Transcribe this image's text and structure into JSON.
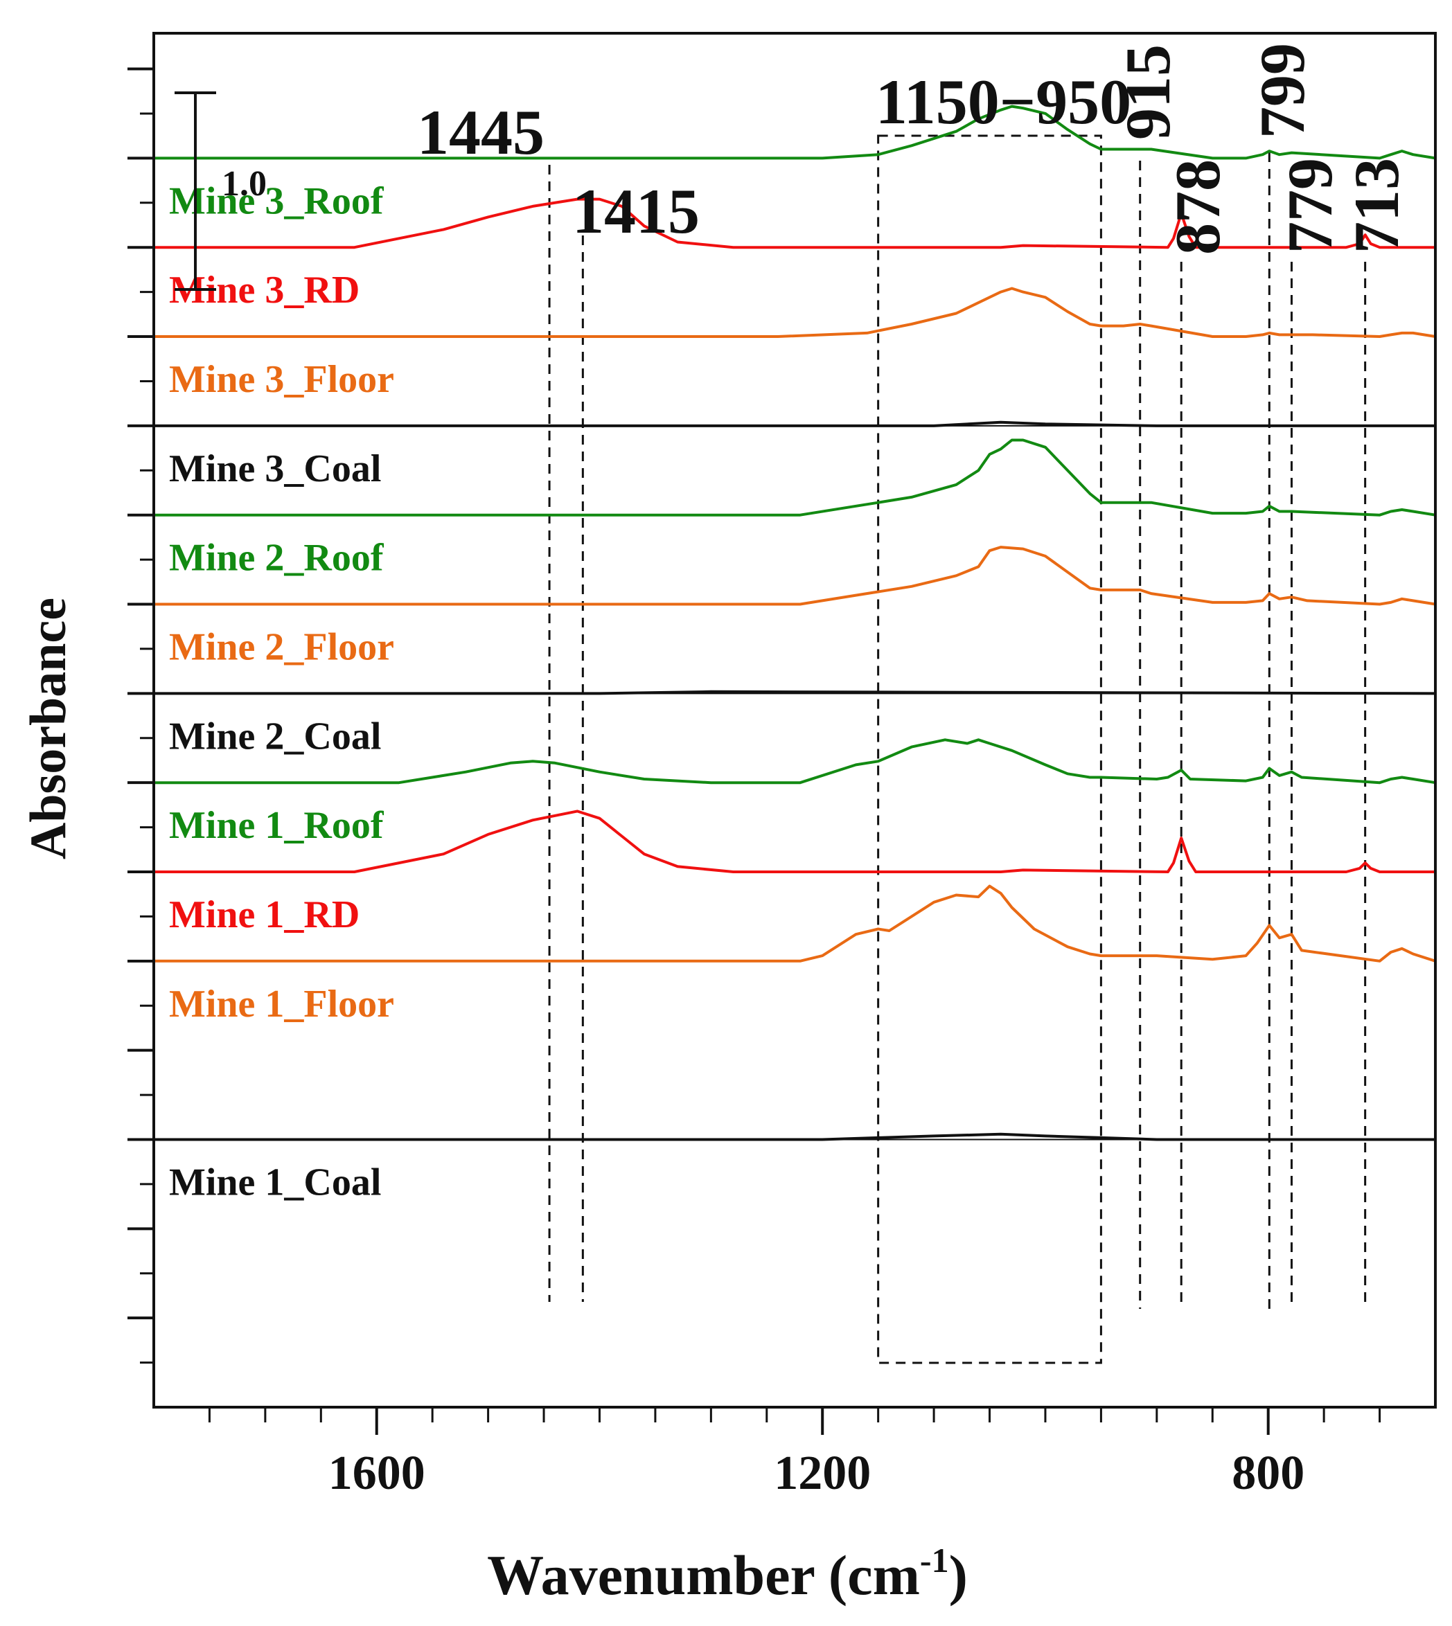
{
  "chart_data": {
    "type": "line",
    "title": "",
    "xlabel": "Wavenumber (cm",
    "xlabel_sup": "-1",
    "xlabel_suffix": ")",
    "ylabel": "Absorbance",
    "x_direction": "reversed",
    "xlim": [
      1800,
      650
    ],
    "xticks": [
      1600,
      1200,
      800
    ],
    "xtick_labels": [
      "1600",
      "1200",
      "800"
    ],
    "x_minor_step": 50,
    "ylim": [
      0,
      7.7
    ],
    "y_minor_step": 0.25,
    "scale_bar": {
      "label": "1.0",
      "value": 1.0
    },
    "grid": false,
    "series_labels": [
      {
        "name": "Mine 3_Roof",
        "color": "#128a12"
      },
      {
        "name": "Mine 3_RD",
        "color": "#f01010"
      },
      {
        "name": "Mine 3_Floor",
        "color": "#e96a14"
      },
      {
        "name": "Mine 3_Coal",
        "color": "#111111"
      },
      {
        "name": "Mine 2_Roof",
        "color": "#128a12"
      },
      {
        "name": "Mine 2_Floor",
        "color": "#e96a14"
      },
      {
        "name": "Mine 2_Coal",
        "color": "#111111"
      },
      {
        "name": "Mine 1_Roof",
        "color": "#128a12"
      },
      {
        "name": "Mine 1_RD",
        "color": "#f01010"
      },
      {
        "name": "Mine 1_Floor",
        "color": "#e96a14"
      },
      {
        "name": "Mine 1_Coal",
        "color": "#111111"
      }
    ],
    "series": [
      {
        "name": "Mine 3_Roof",
        "color": "#128a12",
        "baseline": 7.0,
        "x": [
          1800,
          1200,
          1150,
          1120,
          1080,
          1060,
          1040,
          1030,
          1020,
          1000,
          980,
          960,
          950,
          930,
          915,
          905,
          850,
          820,
          805,
          799,
          790,
          779,
          700,
          690,
          680,
          670,
          650
        ],
        "y": [
          0,
          0,
          0.02,
          0.07,
          0.15,
          0.22,
          0.27,
          0.29,
          0.28,
          0.25,
          0.16,
          0.08,
          0.05,
          0.05,
          0.05,
          0.05,
          0.0,
          0.0,
          0.02,
          0.04,
          0.02,
          0.03,
          0.0,
          0.02,
          0.04,
          0.02,
          0
        ]
      },
      {
        "name": "Mine 3_RD",
        "color": "#f01010",
        "baseline": 6.5,
        "x": [
          1800,
          1620,
          1540,
          1500,
          1460,
          1420,
          1400,
          1380,
          1360,
          1330,
          1280,
          1040,
          1020,
          890,
          885,
          878,
          871,
          865,
          730,
          718,
          713,
          708,
          700,
          650
        ],
        "y": [
          0,
          0,
          0.1,
          0.17,
          0.23,
          0.27,
          0.27,
          0.23,
          0.12,
          0.03,
          0,
          0,
          0.01,
          0,
          0.05,
          0.19,
          0.06,
          0,
          0,
          0.02,
          0.07,
          0.02,
          0,
          0
        ]
      },
      {
        "name": "Mine 3_Floor",
        "color": "#e96a14",
        "baseline": 6.0,
        "x": [
          1800,
          1240,
          1160,
          1120,
          1080,
          1060,
          1040,
          1030,
          1020,
          1000,
          980,
          960,
          950,
          930,
          915,
          905,
          850,
          820,
          805,
          799,
          790,
          779,
          760,
          700,
          690,
          680,
          670,
          650
        ],
        "y": [
          0,
          0,
          0.02,
          0.07,
          0.13,
          0.19,
          0.25,
          0.27,
          0.25,
          0.22,
          0.14,
          0.07,
          0.06,
          0.06,
          0.07,
          0.06,
          0,
          0,
          0.01,
          0.02,
          0.01,
          0.01,
          0.01,
          0,
          0.01,
          0.02,
          0.02,
          0
        ]
      },
      {
        "name": "Mine 3_Coal",
        "color": "#111111",
        "baseline": 5.5,
        "x": [
          1800,
          1100,
          1040,
          1000,
          900,
          650
        ],
        "y": [
          0,
          0,
          0.02,
          0.01,
          0,
          0
        ]
      },
      {
        "name": "Mine 2_Roof",
        "color": "#128a12",
        "baseline": 5.0,
        "x": [
          1800,
          1220,
          1170,
          1150,
          1120,
          1080,
          1060,
          1050,
          1040,
          1030,
          1020,
          1000,
          980,
          960,
          950,
          930,
          915,
          905,
          850,
          820,
          805,
          799,
          790,
          779,
          700,
          690,
          680,
          670,
          650
        ],
        "y": [
          0,
          0,
          0.05,
          0.07,
          0.1,
          0.17,
          0.25,
          0.34,
          0.37,
          0.42,
          0.42,
          0.38,
          0.25,
          0.12,
          0.07,
          0.07,
          0.07,
          0.07,
          0.01,
          0.01,
          0.02,
          0.05,
          0.02,
          0.02,
          0.0,
          0.02,
          0.03,
          0.02,
          0
        ]
      },
      {
        "name": "Mine 2_Floor",
        "color": "#e96a14",
        "baseline": 4.5,
        "x": [
          1800,
          1220,
          1170,
          1150,
          1120,
          1080,
          1060,
          1050,
          1040,
          1020,
          1000,
          980,
          960,
          950,
          930,
          915,
          905,
          850,
          820,
          805,
          799,
          790,
          779,
          765,
          700,
          690,
          680,
          670,
          650
        ],
        "y": [
          0,
          0,
          0.05,
          0.07,
          0.1,
          0.16,
          0.21,
          0.3,
          0.32,
          0.31,
          0.27,
          0.18,
          0.09,
          0.08,
          0.08,
          0.08,
          0.06,
          0.01,
          0.01,
          0.02,
          0.06,
          0.03,
          0.04,
          0.02,
          0,
          0.01,
          0.03,
          0.02,
          0
        ]
      },
      {
        "name": "Mine 2_Coal",
        "color": "#111111",
        "baseline": 4.0,
        "x": [
          1800,
          1400,
          1300,
          650
        ],
        "y": [
          0,
          0,
          0.01,
          0
        ]
      },
      {
        "name": "Mine 1_Roof",
        "color": "#128a12",
        "baseline": 3.5,
        "x": [
          1800,
          1580,
          1520,
          1480,
          1460,
          1440,
          1400,
          1360,
          1300,
          1220,
          1170,
          1150,
          1120,
          1090,
          1070,
          1060,
          1050,
          1030,
          1000,
          980,
          960,
          950,
          900,
          890,
          878,
          870,
          820,
          805,
          799,
          790,
          779,
          770,
          700,
          690,
          680,
          670,
          650
        ],
        "y": [
          0,
          0,
          0.06,
          0.11,
          0.12,
          0.11,
          0.06,
          0.02,
          0.0,
          0.0,
          0.1,
          0.12,
          0.2,
          0.24,
          0.22,
          0.24,
          0.22,
          0.18,
          0.1,
          0.05,
          0.03,
          0.03,
          0.02,
          0.03,
          0.07,
          0.02,
          0.01,
          0.03,
          0.08,
          0.04,
          0.06,
          0.03,
          0,
          0.02,
          0.03,
          0.02,
          0
        ]
      },
      {
        "name": "Mine 1_RD",
        "color": "#f01010",
        "baseline": 3.0,
        "x": [
          1800,
          1620,
          1540,
          1500,
          1460,
          1420,
          1400,
          1380,
          1360,
          1330,
          1280,
          1040,
          1020,
          890,
          885,
          878,
          871,
          865,
          730,
          718,
          713,
          708,
          700,
          650
        ],
        "y": [
          0,
          0,
          0.1,
          0.21,
          0.29,
          0.34,
          0.3,
          0.2,
          0.1,
          0.03,
          0,
          0,
          0.01,
          0,
          0.05,
          0.19,
          0.06,
          0,
          0,
          0.02,
          0.05,
          0.02,
          0,
          0
        ]
      },
      {
        "name": "Mine 1_Floor",
        "color": "#e96a14",
        "baseline": 2.5,
        "x": [
          1800,
          1220,
          1200,
          1170,
          1150,
          1140,
          1120,
          1100,
          1080,
          1060,
          1050,
          1040,
          1030,
          1010,
          980,
          960,
          950,
          900,
          850,
          820,
          810,
          799,
          790,
          779,
          770,
          700,
          690,
          680,
          670,
          650
        ],
        "y": [
          0,
          0,
          0.03,
          0.15,
          0.18,
          0.17,
          0.25,
          0.33,
          0.37,
          0.36,
          0.42,
          0.38,
          0.3,
          0.18,
          0.08,
          0.04,
          0.03,
          0.03,
          0.01,
          0.03,
          0.1,
          0.2,
          0.13,
          0.15,
          0.06,
          0.0,
          0.05,
          0.07,
          0.04,
          0
        ]
      },
      {
        "name": "Mine 1_Coal",
        "color": "#111111",
        "baseline": 1.5,
        "x": [
          1800,
          1200,
          1150,
          1100,
          1040,
          1000,
          950,
          900,
          650
        ],
        "y": [
          0,
          0,
          0.01,
          0.02,
          0.03,
          0.02,
          0.01,
          0,
          0
        ]
      }
    ],
    "annotations": [
      {
        "label": "1445",
        "x": 1445,
        "vertical": false
      },
      {
        "label": "1415",
        "x": 1415,
        "vertical": false
      },
      {
        "label": "1150−950",
        "x_range": [
          1150,
          950
        ],
        "vertical": false
      },
      {
        "label": "915",
        "x": 915,
        "vertical": true
      },
      {
        "label": "878",
        "x": 878,
        "vertical": true
      },
      {
        "label": "799",
        "x": 799,
        "vertical": true
      },
      {
        "label": "779",
        "x": 779,
        "vertical": true
      },
      {
        "label": "713",
        "x": 713,
        "vertical": true
      }
    ]
  }
}
